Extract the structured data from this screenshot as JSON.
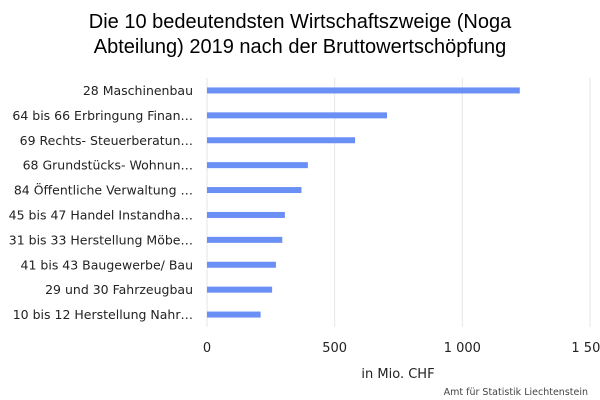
{
  "chart_data": {
    "type": "bar",
    "orientation": "horizontal",
    "title": "Die 10 bedeutendsten Wirtschaftszweige (Noga Abteilung) 2019 nach der Bruttowertschöpfung",
    "title_lines": [
      "Die 10 bedeutendsten Wirtschaftszweige (Noga",
      "Abteilung) 2019 nach der Bruttowertschöpfung"
    ],
    "categories": [
      "28 Maschinenbau",
      "64 bis 66 Erbringung Finan…",
      "69 Rechts- Steuerberatun…",
      "68 Grundstücks- Wohnun…",
      "84 Öffentliche Verwaltung …",
      "45 bis 47 Handel Instandha…",
      "31 bis 33 Herstellung Möbe…",
      "41 bis 43 Baugewerbe/ Bau",
      "29 und 30 Fahrzeugbau",
      "10 bis 12 Herstellung Nahr…"
    ],
    "values": [
      1225,
      705,
      580,
      395,
      370,
      305,
      295,
      270,
      255,
      210
    ],
    "xlabel": "in Mio. CHF",
    "ylabel": "",
    "xlim": [
      0,
      1500
    ],
    "ticks": [
      0,
      500,
      1000,
      1500
    ],
    "tick_labels": [
      "0",
      "500",
      "1 000",
      "1 500"
    ],
    "grid": "vertical",
    "legend": "none",
    "bar_color": "#6a8ff5",
    "grid_color": "#e6e6e6"
  },
  "source": "Amt für Statistik Liechtenstein"
}
